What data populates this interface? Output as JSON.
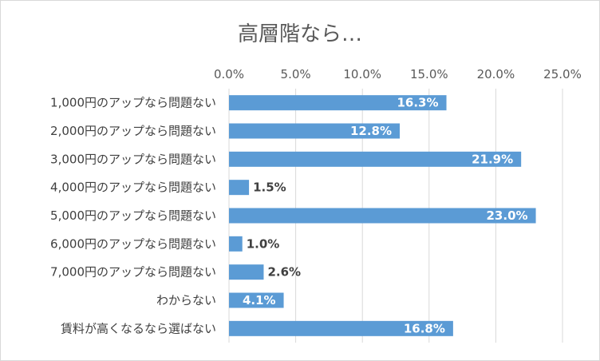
{
  "chart_data": {
    "type": "bar",
    "orientation": "horizontal",
    "title": "高層階なら…",
    "categories": [
      "1,000円のアップなら問題ない",
      "2,000円のアップなら問題ない",
      "3,000円のアップなら問題ない",
      "4,000円のアップなら問題ない",
      "5,000円のアップなら問題ない",
      "6,000円のアップなら問題ない",
      "7,000円のアップなら問題ない",
      "わからない",
      "賃料が高くなるなら選ばない"
    ],
    "values": [
      16.3,
      12.8,
      21.9,
      1.5,
      23.0,
      1.0,
      2.6,
      4.1,
      16.8
    ],
    "value_labels": [
      "16.3%",
      "12.8%",
      "21.9%",
      "1.5%",
      "23.0%",
      "1.0%",
      "2.6%",
      "4.1%",
      "16.8%"
    ],
    "xlim": [
      0,
      25
    ],
    "xticks": [
      0,
      5,
      10,
      15,
      20,
      25
    ],
    "xtick_labels": [
      "0.0%",
      "5.0%",
      "10.0%",
      "15.0%",
      "20.0%",
      "25.0%"
    ],
    "x_axis_position": "top",
    "grid": true,
    "legend": false,
    "colors": {
      "bar": "#5b9bd5",
      "label_inside": "#ffffff",
      "label_outside": "#404040"
    }
  }
}
